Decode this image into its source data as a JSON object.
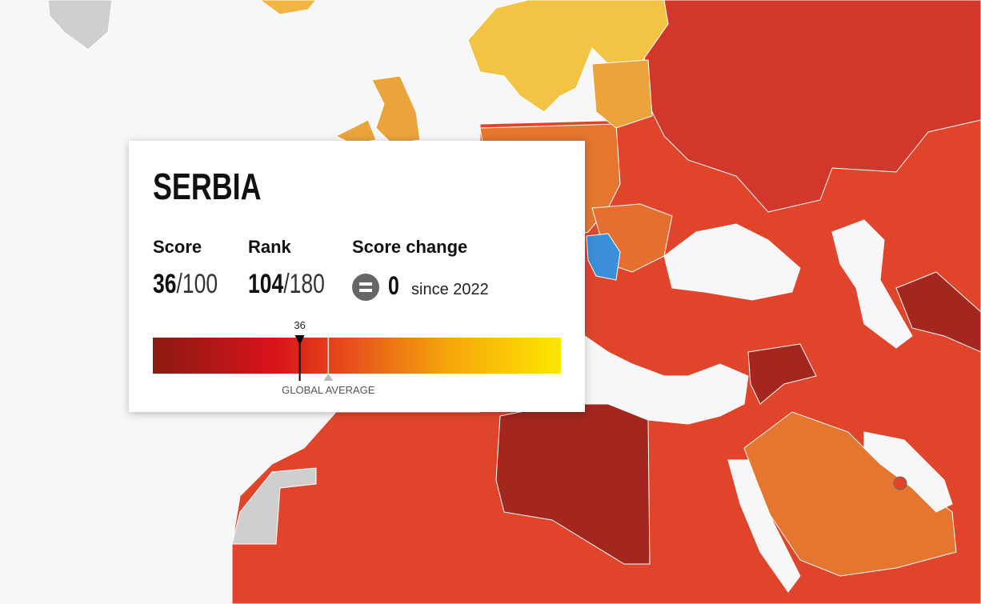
{
  "tooltip": {
    "country": "SERBIA",
    "score_label": "Score",
    "score": 36,
    "score_suffix": "/100",
    "rank_label": "Rank",
    "rank": 104,
    "rank_suffix": "/180",
    "change_label": "Score change",
    "change": 0,
    "change_since": "since 2022",
    "scale_lim": [
      0,
      100
    ],
    "global_average": 43,
    "global_average_label": "GLOBAL AVERAGE"
  }
}
